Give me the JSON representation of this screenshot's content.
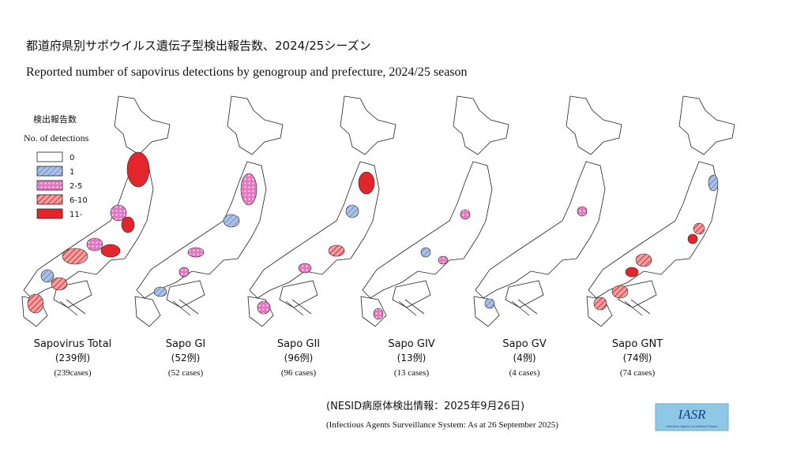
{
  "header": {
    "title_ja": "都道府県別サポウイルス遺伝子型検出報告数、2024/25シーズン",
    "title_en": "Reported number of sapovirus detections by genogroup and prefecture, 2024/25 season"
  },
  "legend": {
    "title_ja": "検出報告数",
    "title_en": "No. of detections",
    "items": [
      "0",
      "1",
      "2-5",
      "6-10",
      "11-"
    ]
  },
  "panels": [
    {
      "name": "Sapovirus Total",
      "count_ja": "(239例)",
      "count_en": "(239cases)"
    },
    {
      "name": "Sapo GI",
      "count_ja": "(52例)",
      "count_en": "(52 cases)"
    },
    {
      "name": "Sapo GII",
      "count_ja": "(96例)",
      "count_en": "(96 cases)"
    },
    {
      "name": "Sapo GIV",
      "count_ja": "(13例)",
      "count_en": "(13 cases)"
    },
    {
      "name": "Sapo GV",
      "count_ja": "(4例)",
      "count_en": "(4 cases)"
    },
    {
      "name": "Sapo GNT",
      "count_ja": "(74例)",
      "count_en": "(74 cases)"
    }
  ],
  "source": {
    "ja": "(NESID病原体検出情報：2025年9月26日)",
    "en": "(Infectious Agents Surveillance System: As at 26 September 2025)"
  },
  "logo": {
    "title": "IASR",
    "subtitle": "Infectious Agents Surveillance Report"
  }
}
